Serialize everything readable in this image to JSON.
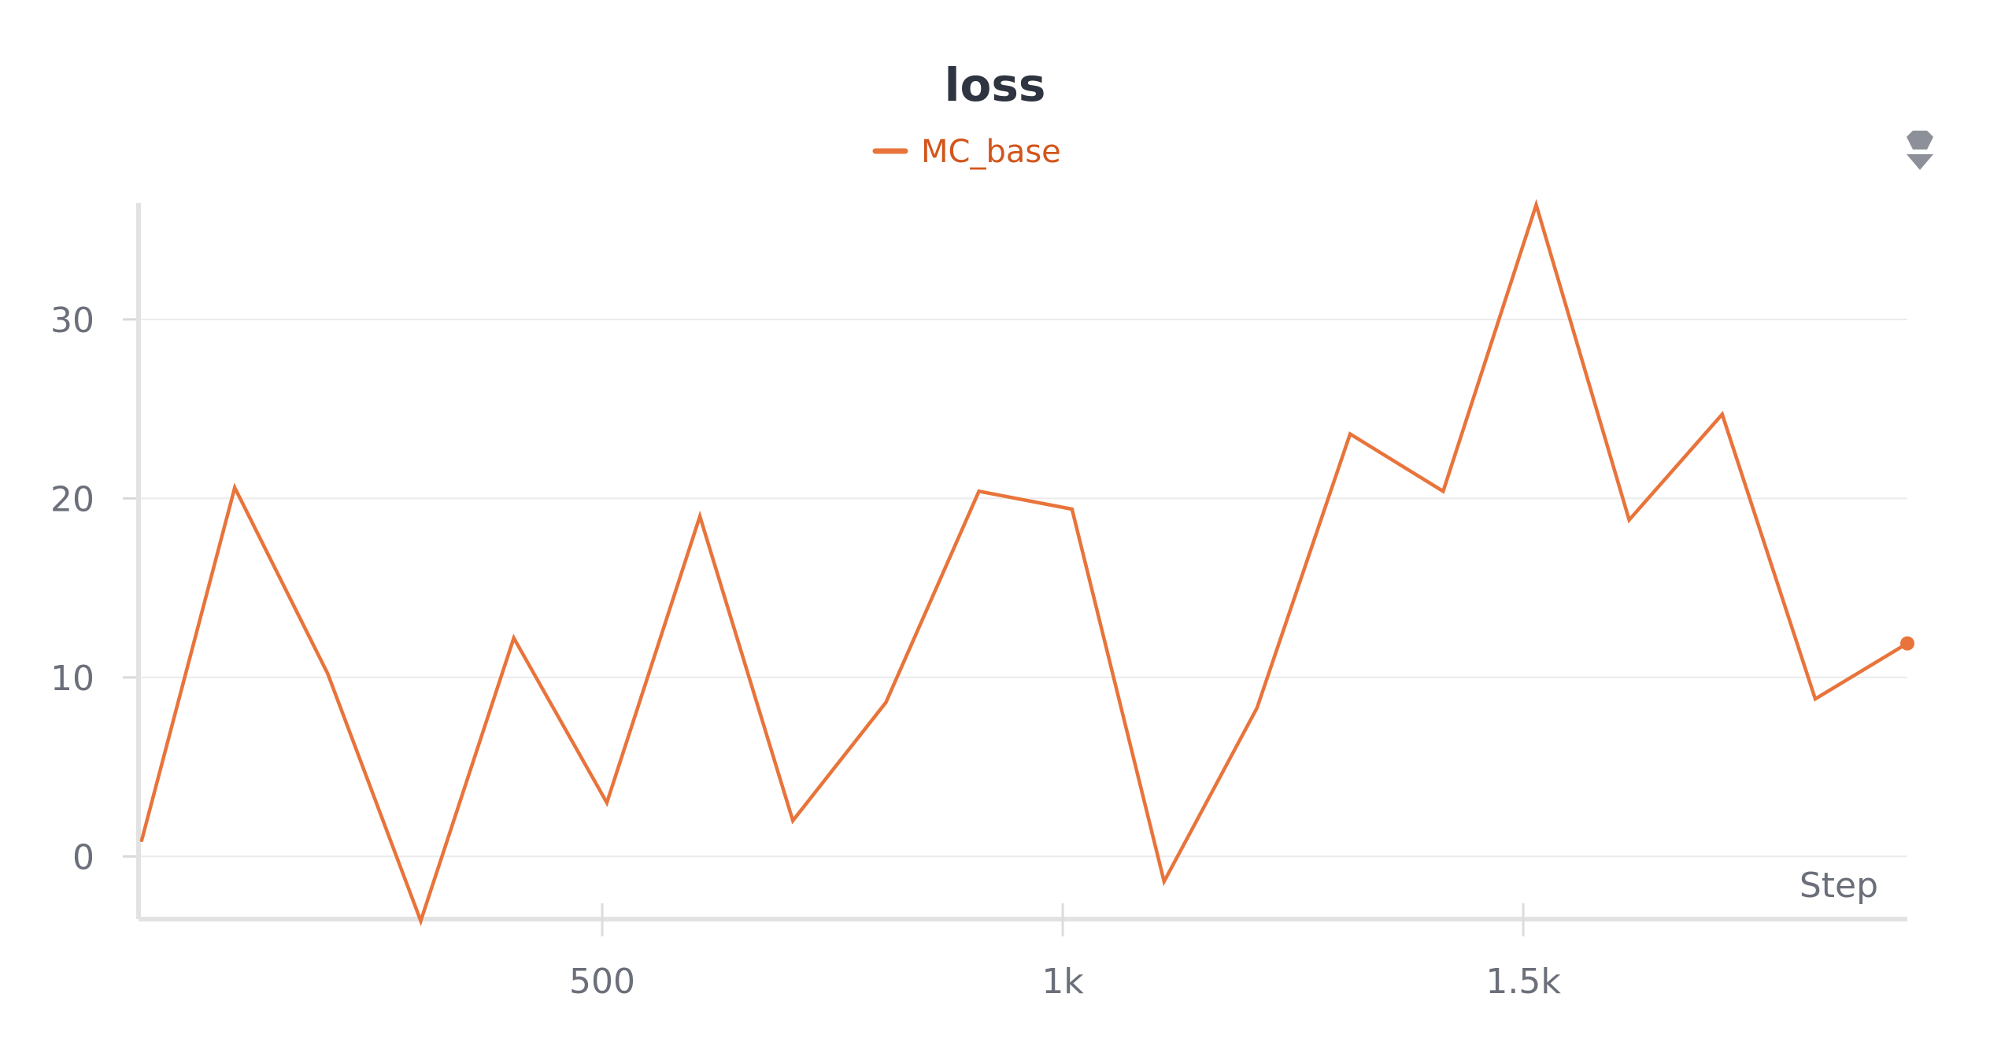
{
  "chart_data": {
    "type": "line",
    "title": "loss",
    "xlabel": "Step",
    "ylabel": "",
    "xlim": [
      0,
      1917
    ],
    "ylim": [
      -3.5,
      36.5
    ],
    "grid": true,
    "legend_position": "top-center",
    "x_ticks": [
      {
        "value": 500,
        "label": "500"
      },
      {
        "value": 1000,
        "label": "1k"
      },
      {
        "value": 1500,
        "label": "1.5k"
      }
    ],
    "y_ticks": [
      {
        "value": 0,
        "label": "0"
      },
      {
        "value": 10,
        "label": "10"
      },
      {
        "value": 20,
        "label": "20"
      },
      {
        "value": 30,
        "label": "30"
      }
    ],
    "series": [
      {
        "name": "MC_base",
        "color": "#e8743b",
        "x": [
          0,
          101,
          202,
          303,
          404,
          505,
          606,
          707,
          808,
          909,
          1010,
          1110,
          1211,
          1312,
          1413,
          1514,
          1615,
          1716,
          1817,
          1917
        ],
        "y": [
          0.9,
          20.6,
          10.2,
          -3.6,
          12.2,
          3.0,
          19.0,
          2.0,
          8.6,
          20.4,
          19.4,
          -1.4,
          8.3,
          23.6,
          20.4,
          36.4,
          18.8,
          24.7,
          8.8,
          11.9
        ]
      }
    ]
  },
  "controls": {
    "menu_icon": "sort-arrows-icon"
  }
}
